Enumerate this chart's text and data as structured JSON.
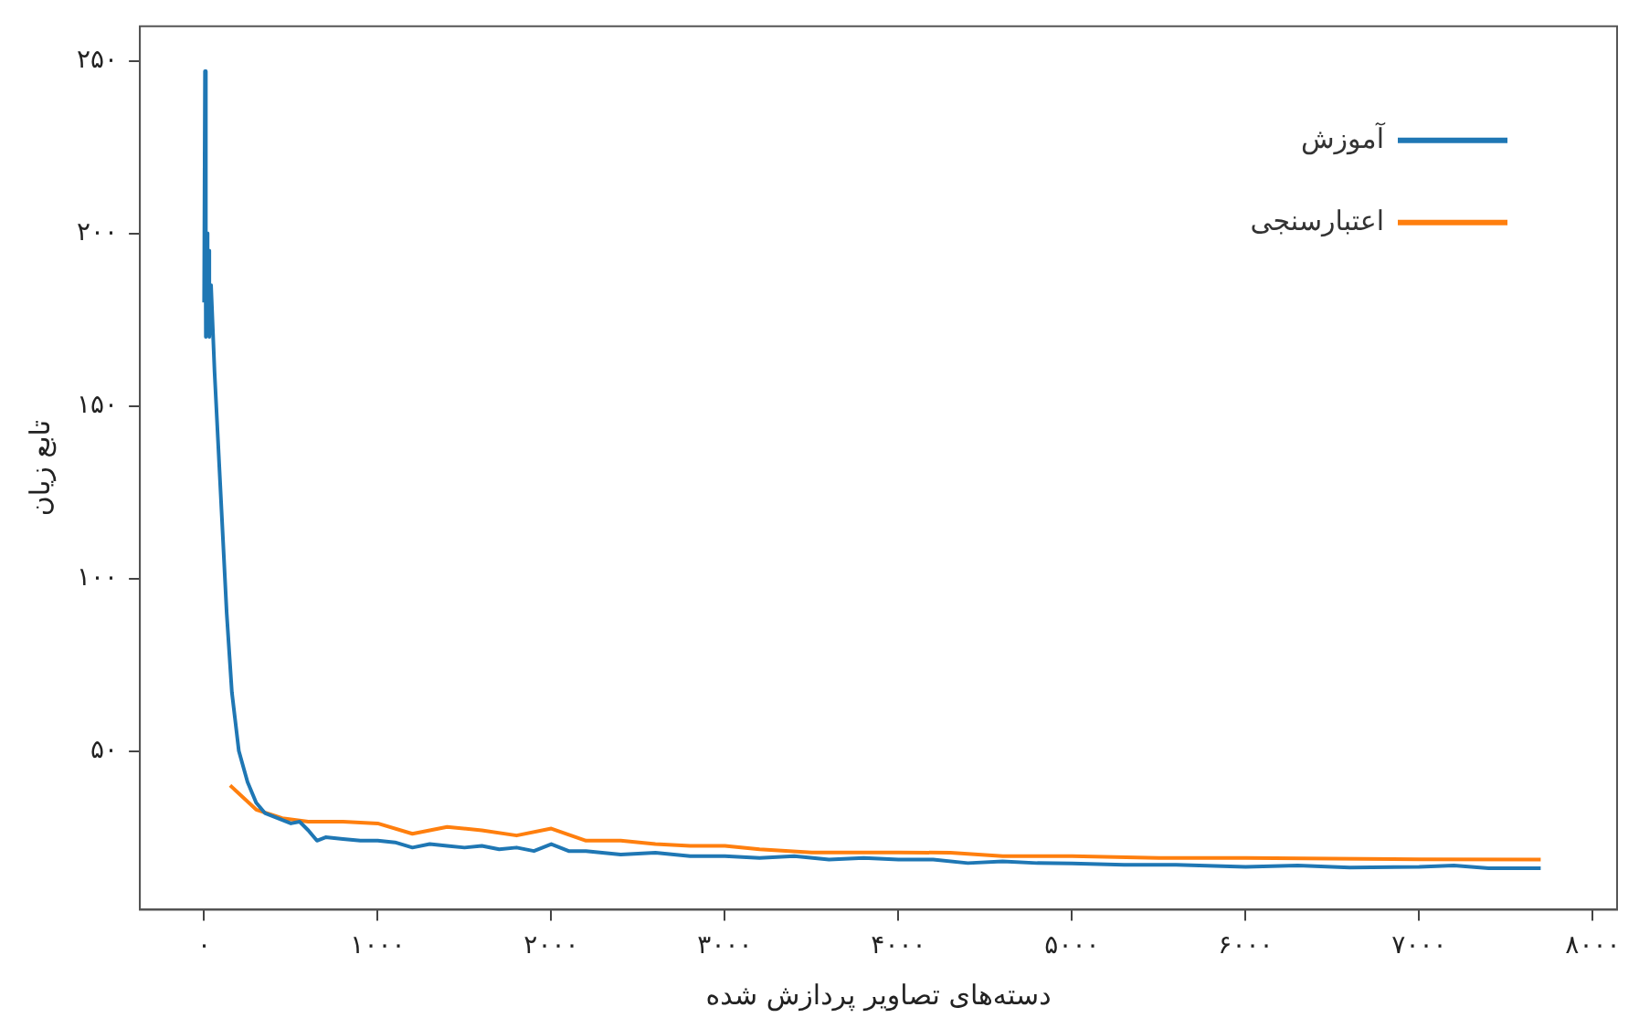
{
  "chart_data": {
    "type": "line",
    "xlabel": "دسته‌های تصاویر پردازش شده",
    "ylabel": "تابع زیان",
    "xlim": [
      -370,
      8140
    ],
    "ylim": [
      4,
      260
    ],
    "xticks": [
      {
        "value": 0,
        "label": "۰"
      },
      {
        "value": 1000,
        "label": "۱۰۰۰"
      },
      {
        "value": 2000,
        "label": "۲۰۰۰"
      },
      {
        "value": 3000,
        "label": "۳۰۰۰"
      },
      {
        "value": 4000,
        "label": "۴۰۰۰"
      },
      {
        "value": 5000,
        "label": "۵۰۰۰"
      },
      {
        "value": 6000,
        "label": "۶۰۰۰"
      },
      {
        "value": 7000,
        "label": "۷۰۰۰"
      },
      {
        "value": 8000,
        "label": "۸۰۰۰"
      }
    ],
    "yticks": [
      {
        "value": 50,
        "label": "۵۰"
      },
      {
        "value": 100,
        "label": "۱۰۰"
      },
      {
        "value": 150,
        "label": "۱۵۰"
      },
      {
        "value": 200,
        "label": "۲۰۰"
      },
      {
        "value": 250,
        "label": "۲۵۰"
      }
    ],
    "grid": false,
    "legend": "top right",
    "marker": "none",
    "line_style": "solid",
    "series": [
      {
        "name": "آموزش",
        "color": "#1f77b4",
        "x": [
          0,
          5,
          10,
          15,
          20,
          25,
          30,
          40,
          60,
          80,
          100,
          130,
          160,
          200,
          250,
          300,
          350,
          400,
          450,
          500,
          550,
          600,
          650,
          700,
          800,
          900,
          1000,
          1100,
          1200,
          1300,
          1400,
          1500,
          1600,
          1700,
          1800,
          1900,
          2000,
          2100,
          2200,
          2400,
          2600,
          2800,
          3000,
          3200,
          3400,
          3600,
          3800,
          4000,
          4200,
          4400,
          4600,
          4800,
          5000,
          5300,
          5600,
          6000,
          6300,
          6600,
          7000,
          7200,
          7400,
          7700
        ],
        "values": [
          180,
          247,
          170,
          200,
          175,
          195,
          170,
          185,
          160,
          140,
          120,
          90,
          67,
          50,
          41,
          35,
          32,
          31,
          30,
          29,
          29.5,
          27,
          24,
          25,
          24.5,
          24,
          24,
          23.5,
          22,
          23,
          22.5,
          22,
          22.5,
          21.5,
          22,
          21,
          23,
          21,
          21,
          20,
          20.5,
          19.5,
          19.5,
          19,
          19.5,
          18.5,
          19,
          18.5,
          18.5,
          17.5,
          18,
          17.5,
          17.4,
          17,
          17,
          16.4,
          16.8,
          16.2,
          16.4,
          16.8,
          16,
          16
        ]
      },
      {
        "name": "اعتبارسنجی",
        "color": "#ff7f0e",
        "x": [
          150,
          300,
          450,
          600,
          800,
          1000,
          1200,
          1400,
          1600,
          1800,
          2000,
          2200,
          2400,
          2600,
          2800,
          3000,
          3200,
          3500,
          4000,
          4300,
          4600,
          5000,
          5500,
          6000,
          6500,
          7000,
          7700
        ],
        "values": [
          40,
          33,
          30.5,
          29.5,
          29.5,
          29,
          26,
          28,
          27,
          25.5,
          27.5,
          24,
          24,
          23,
          22.5,
          22.5,
          21.5,
          20.6,
          20.6,
          20.5,
          19.5,
          19.5,
          19,
          19,
          18.8,
          18.6,
          18.5
        ]
      }
    ]
  }
}
